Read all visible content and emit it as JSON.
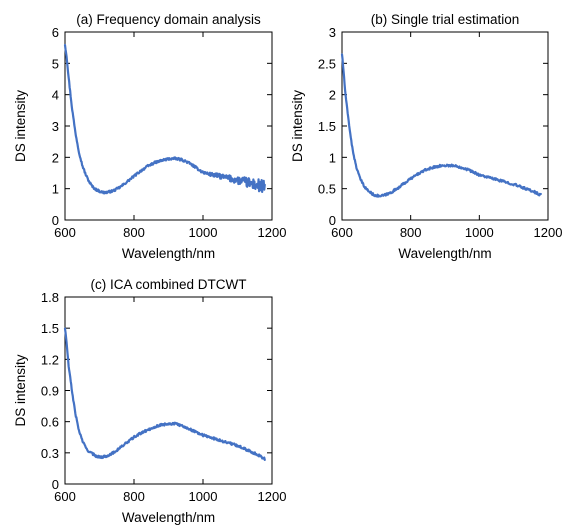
{
  "figure": {
    "line_color": "#4472c4",
    "axis_color": "#000000",
    "background": "#ffffff"
  },
  "chart_data": [
    {
      "type": "line",
      "title": "(a) Frequency domain analysis",
      "xlabel": "Wavelength/nm",
      "ylabel": "DS intensity",
      "xlim": [
        600,
        1200
      ],
      "ylim": [
        0,
        6
      ],
      "xticks": [
        600,
        800,
        1000,
        1200
      ],
      "xtick_labels": [
        "600",
        "800",
        "1000",
        "1200"
      ],
      "yticks": [
        0,
        1,
        2,
        3,
        4,
        5,
        6
      ],
      "ytick_labels": [
        "0",
        "1",
        "2",
        "3",
        "4",
        "5",
        "6"
      ],
      "grid": false,
      "noise_increases_with_wavelength": true,
      "series": [
        {
          "color": "#4472c4",
          "x": [
            600,
            605,
            610,
            620,
            630,
            640,
            650,
            660,
            670,
            680,
            690,
            700,
            710,
            720,
            740,
            760,
            780,
            800,
            820,
            840,
            860,
            880,
            900,
            920,
            940,
            960,
            980,
            1000,
            1020,
            1040,
            1060,
            1080,
            1100,
            1120,
            1140,
            1160,
            1170,
            1180
          ],
          "y": [
            5.6,
            5.2,
            4.6,
            3.6,
            2.8,
            2.2,
            1.75,
            1.45,
            1.22,
            1.06,
            0.97,
            0.92,
            0.88,
            0.88,
            0.93,
            1.05,
            1.22,
            1.4,
            1.57,
            1.72,
            1.83,
            1.9,
            1.95,
            1.96,
            1.92,
            1.82,
            1.67,
            1.52,
            1.46,
            1.42,
            1.37,
            1.32,
            1.27,
            1.22,
            1.16,
            1.1,
            1.06,
            1.02
          ]
        }
      ]
    },
    {
      "type": "line",
      "title": "(b) Single trial estimation",
      "xlabel": "Wavelength/nm",
      "ylabel": "DS intensity",
      "xlim": [
        600,
        1200
      ],
      "ylim": [
        0,
        3
      ],
      "xticks": [
        600,
        800,
        1000,
        1200
      ],
      "xtick_labels": [
        "600",
        "800",
        "1000",
        "1200"
      ],
      "yticks": [
        0,
        0.5,
        1,
        1.5,
        2,
        2.5,
        3
      ],
      "ytick_labels": [
        "0",
        "0.5",
        "1",
        "1.5",
        "2",
        "2.5",
        "3"
      ],
      "grid": false,
      "noise_increases_with_wavelength": false,
      "series": [
        {
          "color": "#4472c4",
          "x": [
            600,
            605,
            610,
            620,
            630,
            640,
            650,
            660,
            670,
            680,
            690,
            700,
            710,
            720,
            740,
            760,
            780,
            800,
            820,
            840,
            860,
            880,
            900,
            920,
            940,
            960,
            980,
            1000,
            1020,
            1040,
            1060,
            1080,
            1100,
            1120,
            1140,
            1160,
            1170,
            1180
          ],
          "y": [
            2.65,
            2.35,
            2.0,
            1.55,
            1.15,
            0.88,
            0.7,
            0.58,
            0.5,
            0.45,
            0.41,
            0.39,
            0.38,
            0.39,
            0.43,
            0.5,
            0.58,
            0.66,
            0.73,
            0.79,
            0.83,
            0.86,
            0.87,
            0.87,
            0.85,
            0.82,
            0.77,
            0.72,
            0.69,
            0.66,
            0.63,
            0.6,
            0.57,
            0.53,
            0.49,
            0.45,
            0.42,
            0.4
          ]
        }
      ]
    },
    {
      "type": "line",
      "title": "(c) ICA combined DTCWT",
      "xlabel": "Wavelength/nm",
      "ylabel": "DS intensity",
      "xlim": [
        600,
        1200
      ],
      "ylim": [
        0,
        1.8
      ],
      "xticks": [
        600,
        800,
        1000,
        1200
      ],
      "xtick_labels": [
        "600",
        "800",
        "1000",
        "1200"
      ],
      "yticks": [
        0,
        0.3,
        0.6,
        0.9,
        1.2,
        1.5,
        1.8
      ],
      "ytick_labels": [
        "0",
        "0.3",
        "0.6",
        "0.9",
        "1.2",
        "1.5",
        "1.8"
      ],
      "grid": false,
      "noise_increases_with_wavelength": false,
      "series": [
        {
          "color": "#4472c4",
          "x": [
            600,
            605,
            610,
            620,
            630,
            640,
            650,
            660,
            670,
            680,
            690,
            700,
            710,
            720,
            740,
            760,
            780,
            800,
            820,
            840,
            860,
            880,
            900,
            920,
            940,
            960,
            980,
            1000,
            1020,
            1040,
            1060,
            1080,
            1100,
            1120,
            1140,
            1160,
            1170,
            1180
          ],
          "y": [
            1.5,
            1.35,
            1.15,
            0.9,
            0.68,
            0.52,
            0.42,
            0.35,
            0.31,
            0.29,
            0.27,
            0.26,
            0.26,
            0.27,
            0.3,
            0.35,
            0.4,
            0.45,
            0.49,
            0.52,
            0.55,
            0.57,
            0.58,
            0.58,
            0.56,
            0.53,
            0.5,
            0.47,
            0.45,
            0.43,
            0.41,
            0.39,
            0.37,
            0.34,
            0.31,
            0.28,
            0.26,
            0.24
          ]
        }
      ]
    }
  ]
}
